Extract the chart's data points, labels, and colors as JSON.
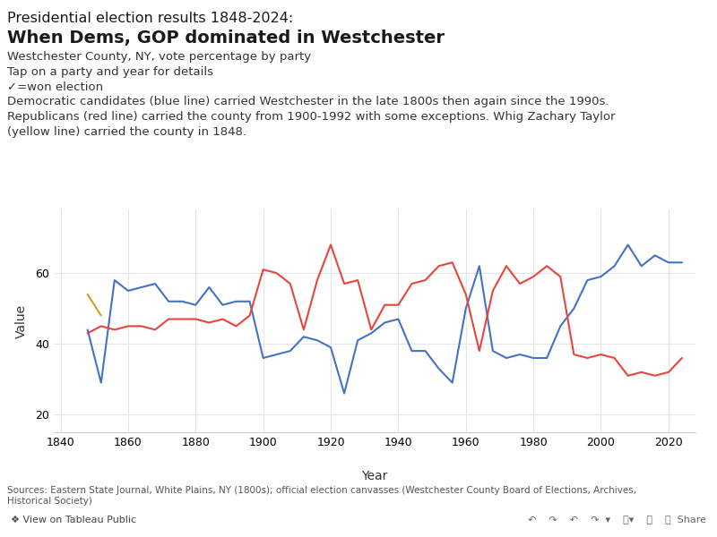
{
  "title_line1": "Presidential election results 1848-2024:",
  "title_line2": "When Dems, GOP dominated in Westchester",
  "subtitle1": "Westchester County, NY, vote percentage by party",
  "subtitle2": "Tap on a party and year for details",
  "subtitle3": "✓=won election",
  "subtitle4": "Democratic candidates (blue line) carried Westchester in the late 1800s then again since the 1990s.",
  "subtitle5": "Republicans (red line) carried the county from 1900-1992 with some exceptions. Whig Zachary Taylor",
  "subtitle6": "(yellow line) carried the county in 1848.",
  "xlabel": "Year",
  "ylabel": "Value",
  "source_text": "Sources: Eastern State Journal, White Plains, NY (1800s); official election canvasses (Westchester County Board of Elections, Archives,\nHistorical Society)",
  "tableau_text": "❖ View on Tableau Public",
  "ylim": [
    15,
    78
  ],
  "yticks": [
    20,
    40,
    60
  ],
  "xlim": [
    1838,
    2028
  ],
  "xticks": [
    1840,
    1860,
    1880,
    1900,
    1920,
    1940,
    1960,
    1980,
    2000,
    2020
  ],
  "dem_years": [
    1848,
    1852,
    1856,
    1860,
    1864,
    1868,
    1872,
    1876,
    1880,
    1884,
    1888,
    1892,
    1896,
    1900,
    1904,
    1908,
    1912,
    1916,
    1920,
    1924,
    1928,
    1932,
    1936,
    1940,
    1944,
    1948,
    1952,
    1956,
    1960,
    1964,
    1968,
    1972,
    1976,
    1980,
    1984,
    1988,
    1992,
    1996,
    2000,
    2004,
    2008,
    2012,
    2016,
    2020,
    2024
  ],
  "dem_values": [
    44,
    29,
    58,
    55,
    56,
    57,
    52,
    52,
    51,
    56,
    51,
    52,
    52,
    36,
    37,
    38,
    42,
    41,
    39,
    26,
    41,
    43,
    46,
    47,
    38,
    38,
    33,
    29,
    50,
    62,
    38,
    36,
    37,
    36,
    36,
    45,
    50,
    58,
    59,
    62,
    68,
    62,
    65,
    63,
    63
  ],
  "rep_years": [
    1848,
    1852,
    1856,
    1860,
    1864,
    1868,
    1872,
    1876,
    1880,
    1884,
    1888,
    1892,
    1896,
    1900,
    1904,
    1908,
    1912,
    1916,
    1920,
    1924,
    1928,
    1932,
    1936,
    1940,
    1944,
    1948,
    1952,
    1956,
    1960,
    1964,
    1968,
    1972,
    1976,
    1980,
    1984,
    1988,
    1992,
    1996,
    2000,
    2004,
    2008,
    2012,
    2016,
    2020,
    2024
  ],
  "rep_values": [
    43,
    45,
    44,
    45,
    45,
    44,
    47,
    47,
    47,
    46,
    47,
    45,
    48,
    61,
    60,
    57,
    44,
    58,
    68,
    57,
    58,
    44,
    51,
    51,
    57,
    58,
    62,
    63,
    54,
    38,
    55,
    62,
    57,
    59,
    62,
    59,
    37,
    36,
    37,
    36,
    31,
    32,
    31,
    32,
    36
  ],
  "whig_years": [
    1848,
    1852
  ],
  "whig_values": [
    54,
    48
  ],
  "dem_color": "#4472C4",
  "rep_color": "#E8453C",
  "whig_color": "#C9A227",
  "bg_color": "#ffffff",
  "grid_color": "#e5e5e5"
}
